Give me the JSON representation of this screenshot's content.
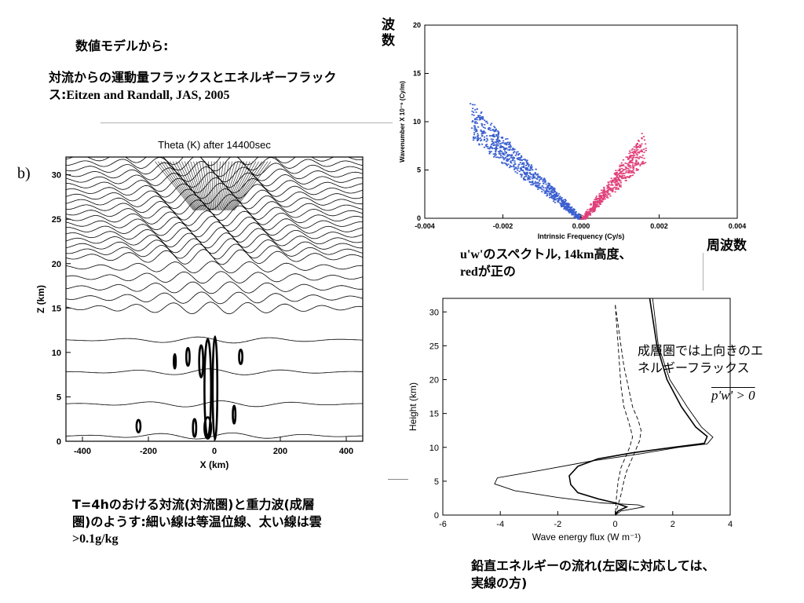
{
  "slide": {
    "heading": "数値モデルから:",
    "subheading_line1": "対流からの運動量フラックスとエネルギーフラック",
    "subheading_line2_prefix": "ス:",
    "subheading_line2_ref": "Eitzen and Randall, JAS, 2005",
    "panel_b_label": "b)",
    "wavenumber_callout_line1": "波",
    "wavenumber_callout_line2": "数",
    "frequency_callout": "周波数",
    "spectrum_caption_line1": "u'w'のスペクトル, 14km高度、",
    "spectrum_caption_line2": "redが正の",
    "stratosphere_note_line1": "成層圏では上向きのエ",
    "stratosphere_note_line2": "ネルギーフラックス",
    "formula_label": "p'w' > 0",
    "theta_caption_line1": "T=4hのおける対流(対流圏)と重力波(成層",
    "theta_caption_line2": "圏)のようす:細い線は等温位線、太い線は雲",
    "theta_caption_line3": ">0.1g/kg",
    "energy_caption_line1": "鉛直エネルギーの流れ(左図に対応しては、",
    "energy_caption_line2": "実線の方)"
  },
  "chart_data": [
    {
      "id": "theta",
      "type": "contour",
      "title": "Theta (K) after 14400sec",
      "xlabel": "X (km)",
      "ylabel": "Z (km)",
      "xlim": [
        -450,
        450
      ],
      "ylim": [
        0,
        32
      ],
      "xticks": [
        -400,
        -200,
        0,
        200,
        400
      ],
      "yticks": [
        0,
        5,
        10,
        15,
        20,
        25,
        30
      ]
    },
    {
      "id": "spectrum",
      "type": "scatter",
      "xlabel": "Intrinsic Frequency (Cy/s)",
      "ylabel": "Wavenumber X 10⁻⁶ (Cy/m)",
      "xlim": [
        -0.004,
        0.004
      ],
      "ylim": [
        0,
        20
      ],
      "xticks": [
        "-0.004",
        "-0.002",
        "0.000",
        "0.002",
        "0.004"
      ],
      "yticks": [
        0,
        5,
        10,
        15,
        20
      ],
      "colors": {
        "negative": "#3a5fd0",
        "positive": "#e0407a"
      }
    },
    {
      "id": "energy",
      "type": "line",
      "xlabel": "Wave energy flux (W m⁻¹)",
      "ylabel": "Height (km)",
      "xlim": [
        -6,
        4
      ],
      "ylim": [
        0,
        32
      ],
      "xticks": [
        -6,
        -4,
        -2,
        0,
        2,
        4
      ],
      "yticks": [
        0,
        5,
        10,
        15,
        20,
        25,
        30
      ],
      "series": [
        {
          "style": "solid-thin",
          "points": [
            [
              1.3,
              32
            ],
            [
              1.5,
              25
            ],
            [
              1.9,
              20
            ],
            [
              2.5,
              16
            ],
            [
              3.0,
              13
            ],
            [
              3.4,
              11.5
            ],
            [
              3.2,
              10.5
            ],
            [
              2.2,
              10
            ],
            [
              0.8,
              9
            ],
            [
              -0.8,
              8
            ],
            [
              -2.6,
              6.6
            ],
            [
              -4.1,
              5.5
            ],
            [
              -4.2,
              4.6
            ],
            [
              -3.5,
              3.6
            ],
            [
              -2.0,
              2.6
            ],
            [
              -0.5,
              1.8
            ],
            [
              0.8,
              1.5
            ],
            [
              1.0,
              1.2
            ],
            [
              0.2,
              0.6
            ],
            [
              0,
              0
            ]
          ]
        },
        {
          "style": "solid-thick",
          "points": [
            [
              1.2,
              32
            ],
            [
              1.45,
              25
            ],
            [
              1.8,
              20
            ],
            [
              2.3,
              16
            ],
            [
              2.8,
              13
            ],
            [
              3.2,
              11.6
            ],
            [
              3.1,
              10.6
            ],
            [
              2.0,
              10
            ],
            [
              0.6,
              9.2
            ],
            [
              -0.6,
              8.3
            ],
            [
              -1.3,
              7.2
            ],
            [
              -1.6,
              5.8
            ],
            [
              -1.55,
              4.5
            ],
            [
              -1.3,
              3.3
            ],
            [
              -0.6,
              2.4
            ],
            [
              0,
              1.8
            ],
            [
              0.4,
              1.2
            ],
            [
              0.1,
              0.6
            ],
            [
              0,
              0
            ]
          ]
        },
        {
          "style": "dashed",
          "points": [
            [
              0,
              31
            ],
            [
              0.05,
              28
            ],
            [
              0.1,
              25
            ],
            [
              0.15,
              22
            ],
            [
              0.2,
              19
            ],
            [
              0.3,
              16
            ],
            [
              0.45,
              14
            ],
            [
              0.55,
              12.5
            ],
            [
              0.6,
              11.5
            ],
            [
              0.5,
              10
            ],
            [
              0.35,
              8.5
            ],
            [
              0.2,
              7
            ],
            [
              0.1,
              5
            ],
            [
              0.05,
              3
            ],
            [
              0,
              0
            ]
          ]
        },
        {
          "style": "dashed",
          "points": [
            [
              0,
              31
            ],
            [
              0.1,
              28
            ],
            [
              0.2,
              25
            ],
            [
              0.3,
              22
            ],
            [
              0.45,
              19
            ],
            [
              0.6,
              16
            ],
            [
              0.8,
              14
            ],
            [
              0.9,
              12.5
            ],
            [
              0.85,
              11
            ],
            [
              0.7,
              9.5
            ],
            [
              0.55,
              8
            ],
            [
              0.4,
              6.5
            ],
            [
              0.3,
              5
            ],
            [
              0.2,
              3
            ],
            [
              0,
              0
            ]
          ]
        }
      ]
    }
  ]
}
